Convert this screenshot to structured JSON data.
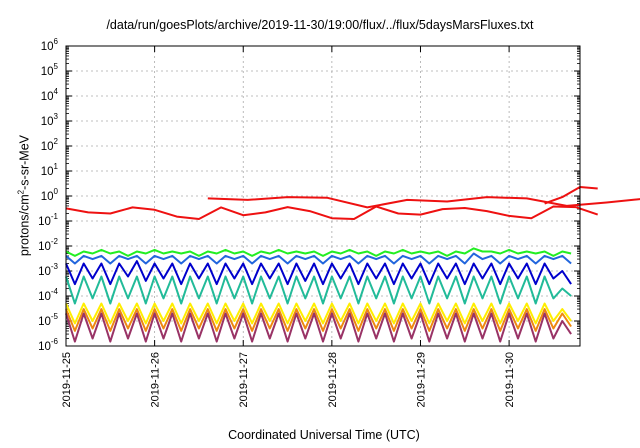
{
  "chart_data": {
    "type": "line",
    "title": "/data/run/goesPlots/archive/2019-11-30/19:00/flux/../flux/5daysMarsFluxes.txt",
    "xlabel": "Coordinated Universal Time (UTC)",
    "ylabel": {
      "base": "protons/cm",
      "sup": "2",
      "rest": "-s-sr-MeV"
    },
    "x_ticks": [
      "2019-11-25",
      "2019-11-26",
      "2019-11-27",
      "2019-11-28",
      "2019-11-29",
      "2019-11-30"
    ],
    "x_range_days": [
      0,
      5.8
    ],
    "y_scale": "log",
    "y_tick_exponents": [
      -6,
      -5,
      -4,
      -3,
      -2,
      -1,
      0,
      1,
      2,
      3,
      4,
      5,
      6
    ],
    "y_tick_base": "10",
    "ylim": [
      1e-06,
      1000000.0
    ],
    "grid": true,
    "series": [
      {
        "color": "#ee1111",
        "period": 0.25,
        "start": 0.0,
        "values": [
          0.32,
          0.22,
          0.2,
          0.35,
          0.28,
          0.15,
          0.12,
          0.35,
          0.17,
          0.22,
          0.36,
          0.25,
          0.13,
          0.12,
          0.38,
          0.2,
          0.18,
          0.3,
          0.33,
          0.25,
          0.16,
          0.13,
          0.38,
          0.36,
          0.18
        ]
      },
      {
        "color": "#ee1111",
        "period": 0.45,
        "start": 1.6,
        "values": [
          0.8,
          0.7,
          0.9,
          0.85,
          0.35,
          0.7,
          0.6,
          0.9,
          0.8,
          0.4,
          0.55,
          0.8,
          0.9,
          0.7
        ]
      },
      {
        "color": "#ee1111",
        "period": 0.2,
        "start": 5.4,
        "values": [
          0.5,
          0.9,
          2.3,
          2.0
        ]
      },
      {
        "color": "#22ee22",
        "period": 0.1,
        "start": 0.0,
        "values": [
          0.006,
          0.004,
          0.006,
          0.005,
          0.007,
          0.005,
          0.006,
          0.004,
          0.006,
          0.005,
          0.007,
          0.005,
          0.006,
          0.005,
          0.006,
          0.004,
          0.006,
          0.005,
          0.007,
          0.005,
          0.006,
          0.004,
          0.006,
          0.005,
          0.007,
          0.005,
          0.006,
          0.005,
          0.006,
          0.004,
          0.006,
          0.005,
          0.007,
          0.005,
          0.006,
          0.004,
          0.006,
          0.005,
          0.007,
          0.005,
          0.006,
          0.005,
          0.006,
          0.004,
          0.006,
          0.005,
          0.008,
          0.006,
          0.006,
          0.005,
          0.007,
          0.005,
          0.006,
          0.005,
          0.006,
          0.004,
          0.006,
          0.005
        ]
      },
      {
        "color": "#2266dd",
        "period": 0.1,
        "start": 0.0,
        "values": [
          0.004,
          0.002,
          0.004,
          0.003,
          0.004,
          0.002,
          0.004,
          0.003,
          0.004,
          0.002,
          0.004,
          0.003,
          0.004,
          0.002,
          0.004,
          0.003,
          0.004,
          0.002,
          0.004,
          0.003,
          0.004,
          0.002,
          0.004,
          0.003,
          0.004,
          0.002,
          0.004,
          0.003,
          0.004,
          0.002,
          0.004,
          0.003,
          0.004,
          0.002,
          0.004,
          0.003,
          0.004,
          0.002,
          0.004,
          0.003,
          0.004,
          0.002,
          0.004,
          0.003,
          0.004,
          0.002,
          0.005,
          0.003,
          0.004,
          0.002,
          0.004,
          0.003,
          0.004,
          0.002,
          0.004,
          0.003,
          0.004,
          0.002
        ]
      },
      {
        "color": "#0000cc",
        "period": 0.1,
        "start": 0.0,
        "values": [
          0.002,
          0.0003,
          0.002,
          0.0005,
          0.002,
          0.0003,
          0.002,
          0.0006,
          0.0025,
          0.0004,
          0.002,
          0.0005,
          0.002,
          0.0003,
          0.002,
          0.0005,
          0.002,
          0.0003,
          0.002,
          0.0005,
          0.002,
          0.0003,
          0.002,
          0.0005,
          0.002,
          0.0003,
          0.002,
          0.0004,
          0.002,
          0.0003,
          0.002,
          0.0005,
          0.002,
          0.0003,
          0.002,
          0.0005,
          0.002,
          0.0003,
          0.002,
          0.0005,
          0.002,
          0.0003,
          0.002,
          0.0005,
          0.002,
          0.0003,
          0.002,
          0.0005,
          0.002,
          0.0003,
          0.002,
          0.0005,
          0.002,
          0.0003,
          0.002,
          0.0005,
          0.001,
          0.0003
        ]
      },
      {
        "color": "#22bb99",
        "period": 0.1,
        "start": 0.0,
        "values": [
          0.0006,
          5e-05,
          0.0006,
          8e-05,
          0.0006,
          5e-05,
          0.0006,
          8e-05,
          0.0006,
          5e-05,
          0.0006,
          8e-05,
          0.0006,
          5e-05,
          0.0006,
          8e-05,
          0.0006,
          5e-05,
          0.0006,
          8e-05,
          0.0006,
          5e-05,
          0.0006,
          8e-05,
          0.0006,
          5e-05,
          0.0006,
          8e-05,
          0.0006,
          5e-05,
          0.0006,
          8e-05,
          0.0006,
          5e-05,
          0.0006,
          8e-05,
          0.0006,
          5e-05,
          0.0006,
          8e-05,
          0.0006,
          5e-05,
          0.0006,
          8e-05,
          0.0006,
          5e-05,
          0.0006,
          8e-05,
          0.0006,
          5e-05,
          0.0006,
          8e-05,
          0.0006,
          5e-05,
          0.0006,
          8e-05,
          0.0002,
          0.0001
        ]
      },
      {
        "color": "#ffee00",
        "period": 0.1,
        "start": 0.0,
        "values": [
          5e-05,
          8e-06,
          5e-05,
          1e-05,
          5e-05,
          8e-06,
          5e-05,
          1e-05,
          5e-05,
          8e-06,
          5e-05,
          1e-05,
          5e-05,
          8e-06,
          5e-05,
          1e-05,
          5e-05,
          8e-06,
          5e-05,
          1e-05,
          5e-05,
          8e-06,
          5e-05,
          1e-05,
          5e-05,
          8e-06,
          5e-05,
          1e-05,
          5e-05,
          8e-06,
          5e-05,
          1e-05,
          5e-05,
          8e-06,
          5e-05,
          1e-05,
          5e-05,
          8e-06,
          5e-05,
          1e-05,
          5e-05,
          8e-06,
          5e-05,
          1e-05,
          5e-05,
          8e-06,
          5e-05,
          1e-05,
          5e-05,
          8e-06,
          5e-05,
          1e-05,
          5e-05,
          8e-06,
          5e-05,
          1e-05,
          3e-05,
          1e-05
        ]
      },
      {
        "color": "#ee8811",
        "period": 0.1,
        "start": 0.0,
        "values": [
          3e-05,
          4e-06,
          3e-05,
          5e-06,
          3e-05,
          4e-06,
          3e-05,
          5e-06,
          3e-05,
          4e-06,
          3e-05,
          5e-06,
          3e-05,
          4e-06,
          3e-05,
          5e-06,
          3e-05,
          4e-06,
          3e-05,
          5e-06,
          3e-05,
          4e-06,
          3e-05,
          5e-06,
          3e-05,
          4e-06,
          3e-05,
          5e-06,
          3e-05,
          4e-06,
          3e-05,
          5e-06,
          3e-05,
          4e-06,
          3e-05,
          5e-06,
          3e-05,
          4e-06,
          3e-05,
          5e-06,
          3e-05,
          4e-06,
          3e-05,
          5e-06,
          3e-05,
          4e-06,
          3e-05,
          5e-06,
          3e-05,
          4e-06,
          3e-05,
          5e-06,
          3e-05,
          4e-06,
          3e-05,
          5e-06,
          2e-05,
          6e-06
        ]
      },
      {
        "color": "#993366",
        "period": 0.1,
        "start": 0.0,
        "values": [
          2e-05,
          1.5e-06,
          2e-05,
          2e-06,
          2e-05,
          1.5e-06,
          2e-05,
          2e-06,
          2e-05,
          1.5e-06,
          2e-05,
          2e-06,
          2e-05,
          1.5e-06,
          2e-05,
          2e-06,
          2e-05,
          1.5e-06,
          2e-05,
          2e-06,
          2e-05,
          1.5e-06,
          2e-05,
          2e-06,
          2e-05,
          1.5e-06,
          2e-05,
          2e-06,
          2e-05,
          1.5e-06,
          2e-05,
          2e-06,
          2e-05,
          1.5e-06,
          2e-05,
          2e-06,
          2e-05,
          1.5e-06,
          2e-05,
          2e-06,
          2e-05,
          1.5e-06,
          2e-05,
          2e-06,
          2e-05,
          1.5e-06,
          2e-05,
          2e-06,
          2e-05,
          1.5e-06,
          2e-05,
          2e-06,
          2e-05,
          1.5e-06,
          2e-05,
          2e-06,
          1e-05,
          3e-06
        ]
      }
    ]
  }
}
